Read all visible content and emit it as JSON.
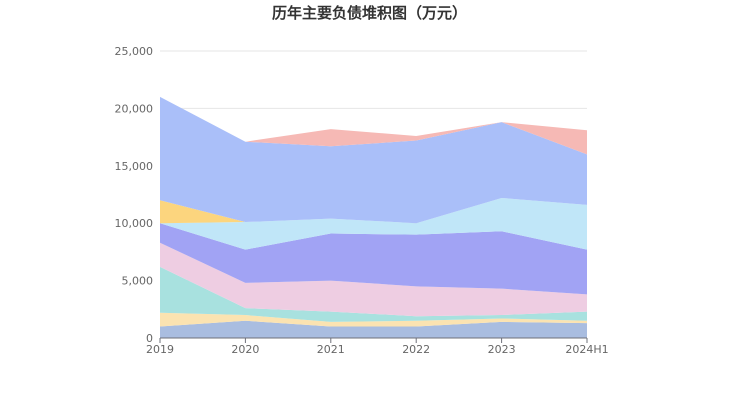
{
  "chart_data": {
    "type": "area",
    "stacked": true,
    "title": "历年主要负债堆积图（万元）",
    "categories": [
      "2019",
      "2020",
      "2021",
      "2022",
      "2023",
      "2024H1"
    ],
    "ylim": [
      0,
      25000
    ],
    "yticks": [
      0,
      5000,
      10000,
      15000,
      20000,
      25000
    ],
    "ytick_labels": [
      "0",
      "5,000",
      "10,000",
      "15,000",
      "20,000",
      "25,000"
    ],
    "grid": true,
    "legend": "none",
    "series": [
      {
        "color": "#a9bde0",
        "values": [
          1000,
          1500,
          1000,
          1000,
          1400,
          1300
        ]
      },
      {
        "color": "#fbe3b1",
        "values": [
          1200,
          500,
          400,
          500,
          300,
          200
        ]
      },
      {
        "color": "#a8e1df",
        "values": [
          4000,
          600,
          900,
          400,
          300,
          800
        ]
      },
      {
        "color": "#eecde2",
        "values": [
          2100,
          2200,
          2700,
          2600,
          2300,
          1500
        ]
      },
      {
        "color": "#a1a3f4",
        "values": [
          1700,
          2900,
          4100,
          4500,
          5000,
          3900
        ]
      },
      {
        "color": "#c0e6f8",
        "values": [
          0,
          2400,
          1300,
          1000,
          2900,
          3900
        ]
      },
      {
        "color": "#fcd57e",
        "values": [
          2000,
          0,
          0,
          0,
          0,
          0
        ]
      },
      {
        "color": "#aabff9",
        "values": [
          9000,
          7000,
          6300,
          7200,
          6600,
          4400
        ]
      },
      {
        "color": "#f6b9b5",
        "values": [
          0,
          0,
          1500,
          400,
          0,
          2100
        ]
      }
    ]
  }
}
